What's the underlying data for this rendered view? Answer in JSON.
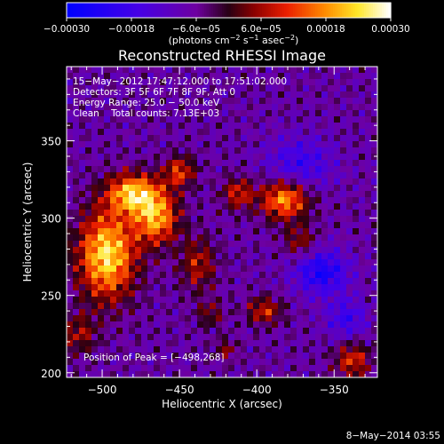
{
  "chart_data": {
    "type": "heatmap",
    "title": "Reconstructed RHESSI Image",
    "xlabel": "Heliocentric X (arcsec)",
    "ylabel": "Heliocentric Y (arcsec)",
    "xlim": [
      -523,
      -322
    ],
    "ylim": [
      197,
      398
    ],
    "x_ticks": [
      -500,
      -450,
      -400,
      -350
    ],
    "y_ticks": [
      200,
      250,
      300,
      350
    ],
    "x_tick_labels": [
      "−500",
      "−450",
      "−400",
      "−350"
    ],
    "y_tick_labels": [
      "200",
      "250",
      "300",
      "350"
    ],
    "colorbar": {
      "range": [
        -0.0003,
        0.0003
      ],
      "tick_values": [
        -0.0003,
        -0.00018,
        -6e-05,
        6e-05,
        0.00018,
        0.0003
      ],
      "tick_labels": [
        "−0.00030",
        "−0.00018",
        "−6.0e−05",
        "6.0e−05",
        "0.00018",
        "0.00030"
      ],
      "unit_label_parts": [
        "(photons cm",
        "−2",
        " s",
        "−1",
        " asec",
        "−2",
        ")"
      ]
    },
    "annotations": [
      "15−May−2012 17:47:12.000 to 17:51:02.000",
      "Detectors: 3F 5F 6F 7F 8F 9F, Att 0",
      "Energy Range: 25.0 − 50.0 keV",
      "Clean    Total counts: 7.13E+03"
    ],
    "peak_label": "Position of Peak = [−498,268]",
    "peak_position": [
      -498,
      268
    ],
    "sources": [
      {
        "x": -497,
        "y": 276,
        "sx": 13,
        "sy": 20,
        "amp": 0.00032
      },
      {
        "x": -480,
        "y": 316,
        "sx": 12,
        "sy": 9,
        "amp": 0.00028
      },
      {
        "x": -465,
        "y": 300,
        "sx": 10,
        "sy": 12,
        "amp": 0.00026
      },
      {
        "x": -450,
        "y": 330,
        "sx": 7,
        "sy": 7,
        "amp": 0.00018
      },
      {
        "x": -438,
        "y": 270,
        "sx": 8,
        "sy": 12,
        "amp": 0.00014
      },
      {
        "x": -382,
        "y": 312,
        "sx": 11,
        "sy": 9,
        "amp": 0.00026
      },
      {
        "x": -412,
        "y": 316,
        "sx": 7,
        "sy": 7,
        "amp": 0.00016
      },
      {
        "x": -372,
        "y": 285,
        "sx": 7,
        "sy": 7,
        "amp": 0.00012
      },
      {
        "x": -515,
        "y": 225,
        "sx": 8,
        "sy": 9,
        "amp": 0.00012
      },
      {
        "x": -430,
        "y": 238,
        "sx": 6,
        "sy": 6,
        "amp": 0.0001
      },
      {
        "x": -395,
        "y": 240,
        "sx": 8,
        "sy": 6,
        "amp": 0.00016
      },
      {
        "x": -338,
        "y": 208,
        "sx": 8,
        "sy": 8,
        "amp": 0.00017
      },
      {
        "x": -420,
        "y": 215,
        "sx": 5,
        "sy": 5,
        "amp": 0.0001
      },
      {
        "x": -358,
        "y": 265,
        "sx": 12,
        "sy": 10,
        "amp": -0.00018
      },
      {
        "x": -372,
        "y": 335,
        "sx": 15,
        "sy": 12,
        "amp": -0.00012
      },
      {
        "x": -342,
        "y": 235,
        "sx": 9,
        "sy": 9,
        "amp": -0.00012
      }
    ],
    "background_level": -7e-05
  },
  "footer_timestamp": "8−May−2014 03:55",
  "colors": {
    "background": "#000000",
    "foreground": "#ffffff"
  }
}
